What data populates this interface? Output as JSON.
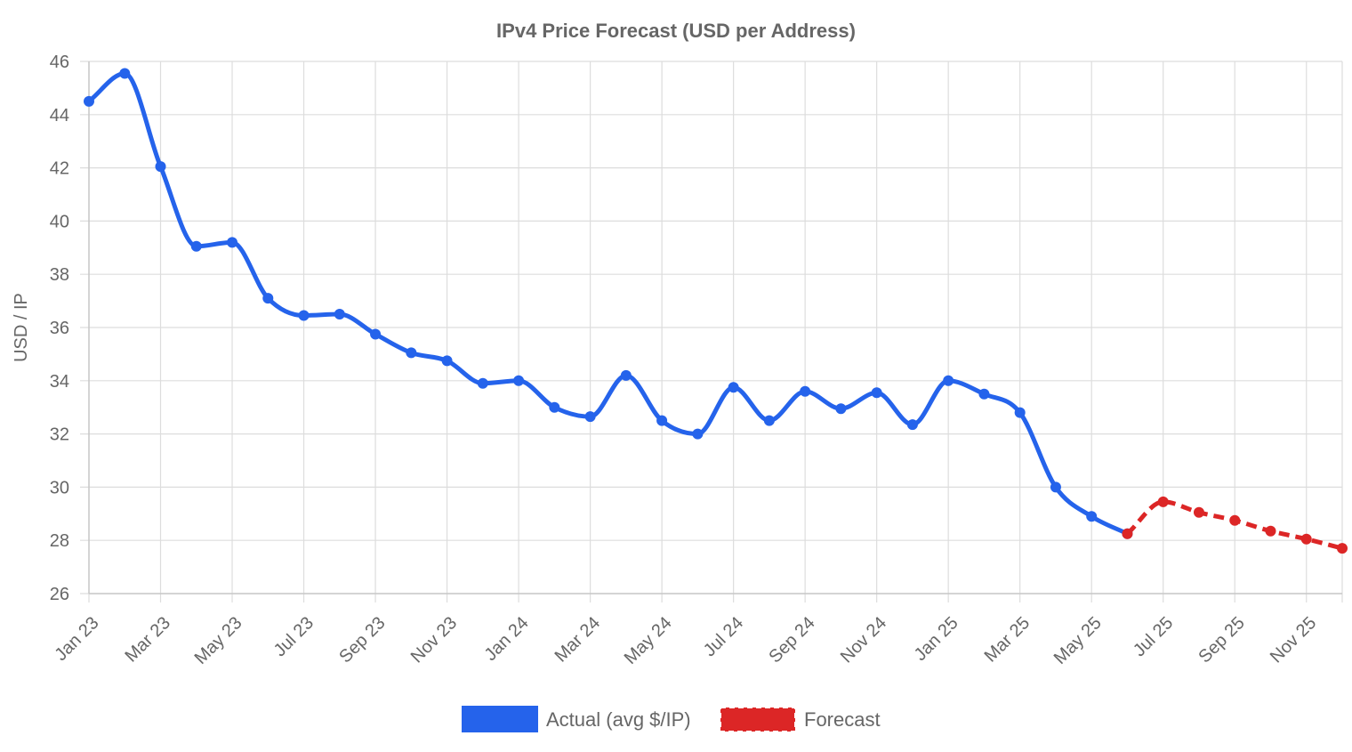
{
  "chart_data": {
    "type": "line",
    "title": "IPv4 Price Forecast (USD per Address)",
    "xlabel": "",
    "ylabel": "USD / IP",
    "ylim": [
      26,
      46
    ],
    "yticks": [
      26,
      28,
      30,
      32,
      34,
      36,
      38,
      40,
      42,
      44,
      46
    ],
    "x_tick_labels": [
      "Jan 23",
      "Mar 23",
      "May 23",
      "Jul 23",
      "Sep 23",
      "Nov 23",
      "Jan 24",
      "Mar 24",
      "May 24",
      "Jul 24",
      "Sep 24",
      "Nov 24",
      "Jan 25",
      "Mar 25",
      "May 25",
      "Jul 25",
      "Sep 25",
      "Nov 25"
    ],
    "grid": true,
    "legend_position": "bottom",
    "categories": [
      "Jan 23",
      "Feb 23",
      "Mar 23",
      "Apr 23",
      "May 23",
      "Jun 23",
      "Jul 23",
      "Aug 23",
      "Sep 23",
      "Oct 23",
      "Nov 23",
      "Dec 23",
      "Jan 24",
      "Feb 24",
      "Mar 24",
      "Apr 24",
      "May 24",
      "Jun 24",
      "Jul 24",
      "Aug 24",
      "Sep 24",
      "Oct 24",
      "Nov 24",
      "Dec 24",
      "Jan 25",
      "Feb 25",
      "Mar 25",
      "Apr 25",
      "May 25",
      "Jun 25",
      "Jul 25",
      "Aug 25",
      "Sep 25",
      "Oct 25",
      "Nov 25",
      "Dec 25"
    ],
    "series": [
      {
        "name": "Actual (avg $/IP)",
        "color": "#2563eb",
        "style": "solid",
        "values": [
          44.5,
          45.55,
          42.05,
          39.05,
          39.2,
          37.1,
          36.45,
          36.5,
          35.75,
          35.05,
          34.75,
          33.9,
          34.0,
          33.0,
          32.65,
          34.2,
          32.5,
          32.0,
          33.75,
          32.5,
          33.6,
          32.95,
          33.55,
          32.35,
          34.0,
          33.5,
          32.8,
          30.0,
          28.9,
          28.25,
          null,
          null,
          null,
          null,
          null,
          null
        ]
      },
      {
        "name": "Forecast",
        "color": "#dc2626",
        "style": "dashed",
        "values": [
          null,
          null,
          null,
          null,
          null,
          null,
          null,
          null,
          null,
          null,
          null,
          null,
          null,
          null,
          null,
          null,
          null,
          null,
          null,
          null,
          null,
          null,
          null,
          null,
          null,
          null,
          null,
          null,
          null,
          28.25,
          29.45,
          29.05,
          28.75,
          28.35,
          28.05,
          27.7
        ]
      }
    ]
  }
}
